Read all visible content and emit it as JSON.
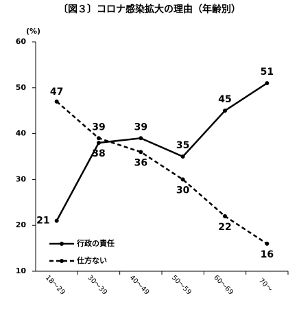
{
  "chart_data": {
    "type": "line",
    "title": "〔図３〕コロナ感染拡大の理由（年齢別）",
    "y_label": "(%)",
    "categories": [
      "18～29",
      "30～39",
      "40～49",
      "50～59",
      "60～69",
      "70～"
    ],
    "series": [
      {
        "name": "行政の責任",
        "color": "#000000",
        "line_style": "solid",
        "values": [
          21,
          38,
          39,
          35,
          45,
          51
        ]
      },
      {
        "name": "仕方ない",
        "color": "#000000",
        "line_style": "dashed",
        "values": [
          47,
          39,
          36,
          30,
          22,
          16
        ]
      }
    ],
    "ylim": [
      10,
      60
    ],
    "yticks": [
      10,
      20,
      30,
      40,
      50,
      60
    ],
    "grid": false,
    "legend": "lower-left"
  }
}
